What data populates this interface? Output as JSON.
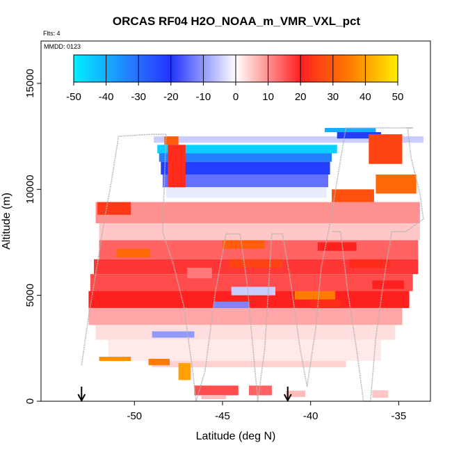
{
  "chart_data": {
    "type": "heatmap",
    "title": "ORCAS RF04 H2O_NOAA_m_VMR_VXL_pct",
    "annotations": [
      "Flts: 4",
      "MMDD: 0123"
    ],
    "xlabel": "Latitude (deg N)",
    "ylabel": "Altitude (m)",
    "xlim": [
      -55.3,
      -33.2
    ],
    "ylim": [
      0,
      17000
    ],
    "x_ticks": [
      -50,
      -45,
      -40,
      -35
    ],
    "y_ticks": [
      0,
      5000,
      10000,
      15000
    ],
    "colorbar": {
      "ticks": [
        -50,
        -40,
        -30,
        -20,
        -10,
        0,
        10,
        20,
        30,
        40,
        50
      ],
      "range": [
        -50,
        50
      ],
      "colors": {
        "-50": "#00f0ff",
        "-30": "#2a6cff",
        "-20": "#2233ff",
        "0": "#ffffff",
        "20": "#ff2020",
        "35": "#ff7a00",
        "50": "#ffee00"
      }
    },
    "arrows_x": [
      -53.0,
      -41.3
    ],
    "flight_track_color": "#b4b4b4",
    "cells": [
      [
        -48.9,
        12200,
        -33.6,
        12500,
        -5
      ],
      [
        -48.7,
        11700,
        -38.5,
        12100,
        -45
      ],
      [
        -48.6,
        11300,
        -38.8,
        11700,
        -33
      ],
      [
        -48.5,
        10700,
        -38.9,
        11300,
        -22
      ],
      [
        -48.4,
        10100,
        -39.0,
        10700,
        -14
      ],
      [
        -48.2,
        9600,
        -39.1,
        10100,
        -2
      ],
      [
        -38.5,
        12400,
        -36.0,
        12700,
        -22
      ],
      [
        -39.2,
        12700,
        -36.3,
        12900,
        -40
      ],
      [
        -52.2,
        8400,
        -33.8,
        9400,
        10
      ],
      [
        -52.0,
        7600,
        -33.8,
        8400,
        5
      ],
      [
        -52.0,
        6700,
        -33.9,
        7600,
        14
      ],
      [
        -52.3,
        6000,
        -33.9,
        6700,
        18
      ],
      [
        -52.5,
        5200,
        -34.2,
        6000,
        16
      ],
      [
        -52.6,
        4400,
        -34.4,
        5200,
        20
      ],
      [
        -52.6,
        3600,
        -34.8,
        4400,
        8
      ],
      [
        -52.2,
        2900,
        -35.2,
        3600,
        3
      ],
      [
        -51.5,
        1900,
        -36.0,
        2900,
        2
      ],
      [
        -49.0,
        1600,
        -38.0,
        1900,
        4
      ],
      [
        -48.3,
        12100,
        -47.5,
        12500,
        30
      ],
      [
        -48.1,
        10100,
        -47.1,
        12100,
        22
      ],
      [
        -36.7,
        11200,
        -34.8,
        12600,
        26
      ],
      [
        -36.3,
        9800,
        -34.0,
        10700,
        32
      ],
      [
        -38.8,
        9400,
        -36.4,
        10000,
        28
      ],
      [
        -52.1,
        8800,
        -50.2,
        9400,
        24
      ],
      [
        -45.0,
        7200,
        -42.6,
        7600,
        30
      ],
      [
        -44.6,
        6300,
        -41.6,
        6700,
        26
      ],
      [
        -51.0,
        6800,
        -49.1,
        7200,
        32
      ],
      [
        -39.6,
        7100,
        -37.4,
        7500,
        20
      ],
      [
        -37.8,
        6300,
        -35.5,
        6700,
        22
      ],
      [
        -36.5,
        5300,
        -34.7,
        5700,
        20
      ],
      [
        -47.0,
        5800,
        -45.6,
        6300,
        12
      ],
      [
        -40.9,
        4800,
        -38.6,
        5200,
        35
      ],
      [
        -40.0,
        4400,
        -38.3,
        4800,
        22
      ],
      [
        -44.5,
        5000,
        -42.0,
        5400,
        -5
      ],
      [
        -45.5,
        4400,
        -43.5,
        4700,
        -12
      ],
      [
        -49.0,
        3000,
        -46.6,
        3300,
        -10
      ],
      [
        -52.0,
        1900,
        -50.2,
        2100,
        38
      ],
      [
        -49.2,
        1700,
        -48.0,
        2000,
        35
      ],
      [
        -47.5,
        1000,
        -46.8,
        1800,
        40
      ],
      [
        -46.6,
        280,
        -44.1,
        740,
        16
      ],
      [
        -43.5,
        280,
        -42.2,
        740,
        14
      ],
      [
        -41.4,
        200,
        -40.3,
        500,
        6
      ],
      [
        -36.5,
        160,
        -35.6,
        520,
        5
      ],
      [
        -46.2,
        100,
        -44.8,
        260,
        6
      ]
    ],
    "flight_track": [
      [
        -53.0,
        1700
      ],
      [
        -52.6,
        4000
      ],
      [
        -52.1,
        6500
      ],
      [
        -51.7,
        8600
      ],
      [
        -51.3,
        10400
      ],
      [
        -50.9,
        12500
      ],
      [
        -49.0,
        12600
      ],
      [
        -48.2,
        12600
      ],
      [
        -48.4,
        8000
      ],
      [
        -47.8,
        6500
      ],
      [
        -47.2,
        4500
      ],
      [
        -46.7,
        1500
      ],
      [
        -46.5,
        0
      ],
      [
        -46.0,
        1400
      ],
      [
        -45.4,
        5200
      ],
      [
        -44.8,
        7900
      ],
      [
        -44.0,
        7900
      ],
      [
        -43.6,
        5500
      ],
      [
        -43.0,
        0
      ],
      [
        -42.6,
        2500
      ],
      [
        -42.2,
        7900
      ],
      [
        -41.6,
        7900
      ],
      [
        -41.2,
        6000
      ],
      [
        -40.6,
        2500
      ],
      [
        -40.2,
        700
      ],
      [
        -39.7,
        3500
      ],
      [
        -39.4,
        6300
      ],
      [
        -38.9,
        8400
      ],
      [
        -38.0,
        12900
      ],
      [
        -37.3,
        12900
      ],
      [
        -36.5,
        12900
      ],
      [
        -35.0,
        12900
      ],
      [
        -34.2,
        12900
      ],
      [
        -34.5,
        12900
      ],
      [
        -34.3,
        11500
      ],
      [
        -33.8,
        9800
      ],
      [
        -33.6,
        8600
      ],
      [
        -34.6,
        8000
      ],
      [
        -35.4,
        8000
      ],
      [
        -35.8,
        6000
      ],
      [
        -36.3,
        3000
      ],
      [
        -36.6,
        0
      ],
      [
        -37.0,
        0
      ],
      [
        -37.4,
        2500
      ],
      [
        -37.9,
        5200
      ],
      [
        -38.3,
        8000
      ],
      [
        -38.8,
        8000
      ]
    ]
  }
}
